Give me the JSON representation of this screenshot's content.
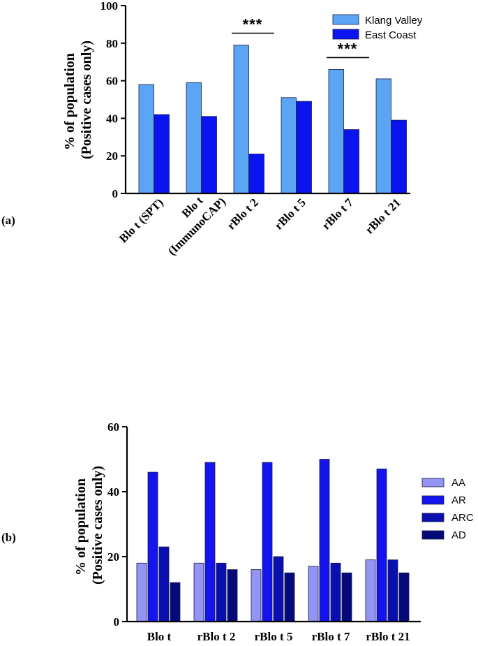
{
  "chart_data": [
    {
      "type": "bar",
      "panel_label": "(a)",
      "title": "",
      "xlabel": "",
      "ylabel": [
        "% of population",
        "(Positive cases only)"
      ],
      "ylim": [
        0,
        100
      ],
      "yticks": [
        0,
        20,
        40,
        60,
        80,
        100
      ],
      "categories": [
        [
          "Blo t (SPT)"
        ],
        [
          "Blo t",
          "(ImmunoCAP)"
        ],
        [
          "rBlo t 2"
        ],
        [
          "rBlo t 5"
        ],
        [
          "rBlo t 7"
        ],
        [
          "rBlo t 21"
        ]
      ],
      "series": [
        {
          "name": "Klang Valley",
          "color": "#5aa6f5",
          "values": [
            58,
            59,
            79,
            51,
            66,
            61
          ]
        },
        {
          "name": "East Coast",
          "color": "#0a14f0",
          "values": [
            42,
            41,
            21,
            49,
            34,
            39
          ]
        }
      ],
      "significance": [
        {
          "category_index": 2,
          "label": "***",
          "level": 79
        },
        {
          "category_index": 4,
          "label": "***",
          "level": 66
        }
      ],
      "legend_position": "top-right"
    },
    {
      "type": "bar",
      "panel_label": "(b)",
      "title": "",
      "xlabel": "",
      "ylabel": [
        "% of population",
        "(Positive cases only)"
      ],
      "ylim": [
        0,
        60
      ],
      "yticks": [
        0,
        20,
        40,
        60
      ],
      "categories": [
        [
          "Blo t"
        ],
        [
          "rBlo t 2"
        ],
        [
          "rBlo t 5"
        ],
        [
          "rBlo t 7"
        ],
        [
          "rBlo t 21"
        ]
      ],
      "series": [
        {
          "name": "AA",
          "color": "#9494f5",
          "values": [
            18,
            18,
            16,
            17,
            19
          ]
        },
        {
          "name": "AR",
          "color": "#1414ee",
          "values": [
            46,
            49,
            49,
            50,
            47
          ]
        },
        {
          "name": "ARC",
          "color": "#0a10b0",
          "values": [
            23,
            18,
            20,
            18,
            19
          ]
        },
        {
          "name": "AD",
          "color": "#050a78",
          "values": [
            12,
            16,
            15,
            15,
            15
          ]
        }
      ],
      "legend_position": "right"
    }
  ]
}
